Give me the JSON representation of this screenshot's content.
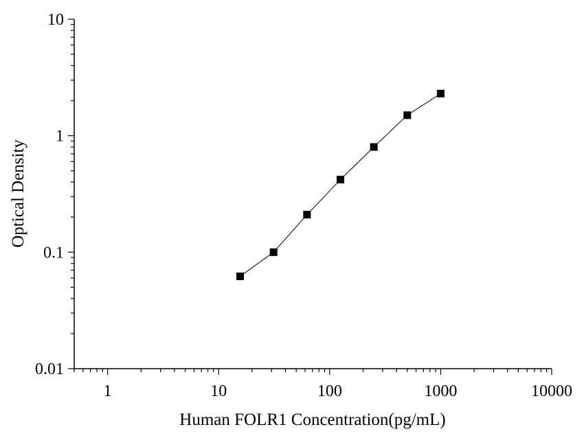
{
  "chart_data": {
    "type": "scatter",
    "xlabel": "Human FOLR1 Concentration(pg/mL)",
    "ylabel": "Optical Density",
    "x_scale": "log",
    "y_scale": "log",
    "xlim": [
      0.5,
      10000
    ],
    "ylim": [
      0.01,
      10
    ],
    "x_ticks": [
      1,
      10,
      100,
      1000,
      10000
    ],
    "x_tick_labels": [
      "1",
      "10",
      "100",
      "1000",
      "10000"
    ],
    "y_ticks": [
      0.01,
      0.1,
      1,
      10
    ],
    "y_tick_labels": [
      "0.01",
      "0.1",
      "1",
      "10"
    ],
    "grid": false,
    "series": [
      {
        "x": [
          15.6,
          31.25,
          62.5,
          125,
          250,
          500,
          1000
        ],
        "y": [
          0.062,
          0.1,
          0.21,
          0.42,
          0.8,
          1.5,
          2.3
        ],
        "marker": "square",
        "line": true,
        "color": "#000000"
      }
    ]
  }
}
